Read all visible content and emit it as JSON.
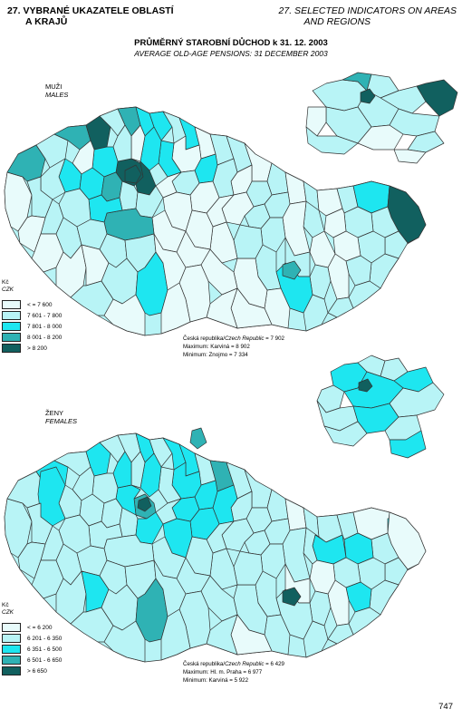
{
  "header": {
    "left_line1": "27. VYBRANÉ UKAZATELE OBLASTÍ",
    "left_line2": "A KRAJŮ",
    "right_line1": "27. SELECTED INDICATORS ON AREAS",
    "right_line2": "AND REGIONS"
  },
  "title": "PRŮMĚRNÝ STAROBNÍ DŮCHOD k 31. 12. 2003",
  "subtitle": "AVERAGE OLD-AGE PENSIONS: 31 DECEMBER 2003",
  "colors": {
    "class1": "#e8fbfb",
    "class2": "#b8f4f6",
    "class3": "#1ee6f0",
    "class4": "#2fb2b4",
    "class5": "#11605f",
    "border": "#333333"
  },
  "males": {
    "label_cz": "MUŽI",
    "label_en": "MALES",
    "legend": {
      "unit_cz": "Kč",
      "unit_en": "CZK",
      "items": [
        "< = 7 600",
        "7 601 - 7 800",
        "7 801 - 8 000",
        "8 001 - 8 200",
        "> 8 200"
      ]
    },
    "stats": {
      "line1_prefix": "Česká republika/",
      "line1_it": "Czech Republic",
      "line1_value": " = 7 902",
      "line2": "Maximum: Karviná = 8 902",
      "line3": "Minimum: Znojmo = 7 334"
    }
  },
  "females": {
    "label_cz": "ŽENY",
    "label_en": "FEMALES",
    "legend": {
      "unit_cz": "Kč",
      "unit_en": "CZK",
      "items": [
        "< = 6 200",
        "6 201 - 6 350",
        "6 351 - 6 500",
        "6 501 - 6 650",
        "> 6 650"
      ]
    },
    "stats": {
      "line1_prefix": "Česká republika/",
      "line1_it": "Czech Republic",
      "line1_value": " = 6 429",
      "line2": "Maximum: Hl. m. Praha = 6 977",
      "line3": "Minimum: Karviná = 5 922"
    }
  },
  "page_number": "747"
}
